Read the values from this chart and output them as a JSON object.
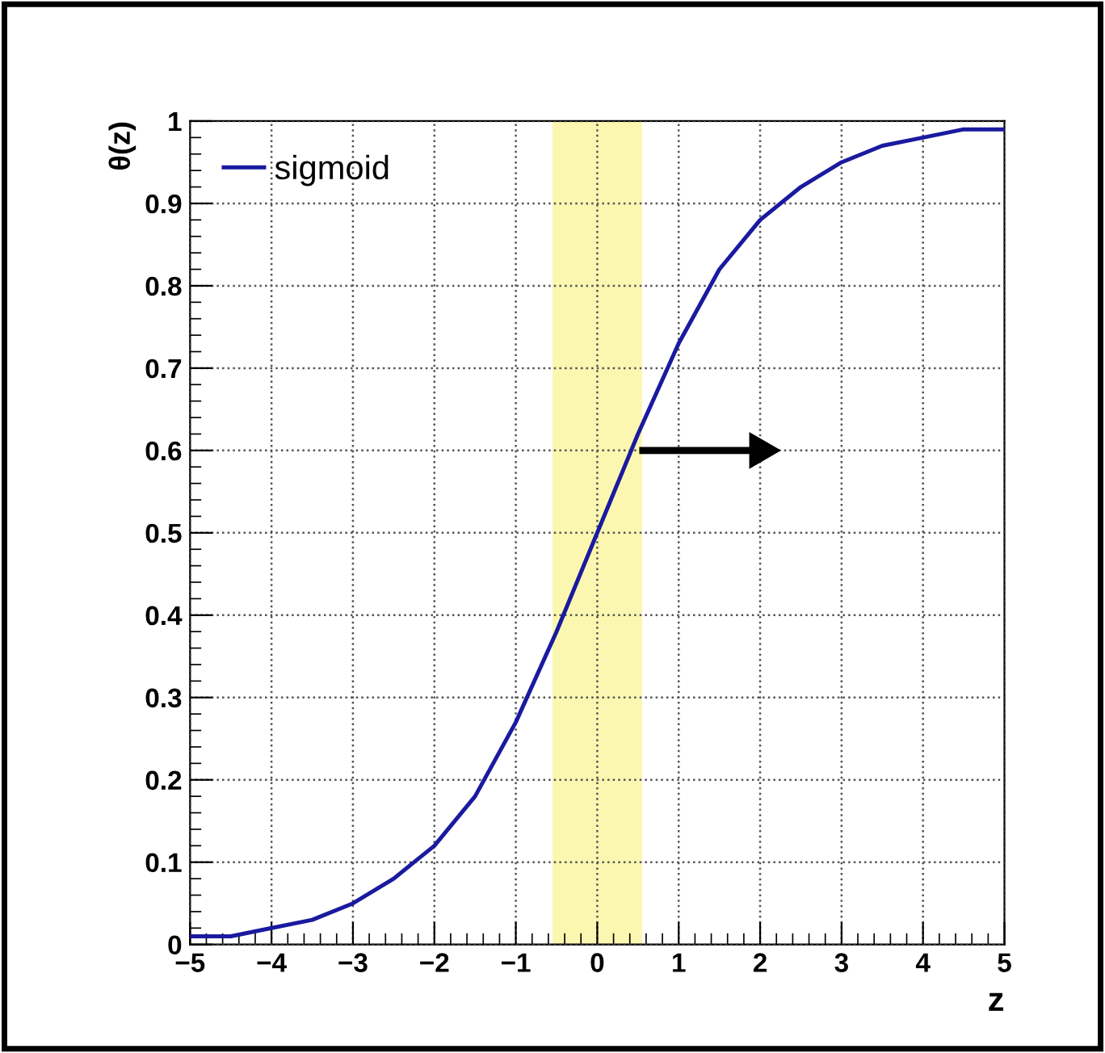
{
  "chart_data": {
    "type": "line",
    "xlabel": "z",
    "ylabel": "θ(z)",
    "x": [
      -5,
      -4.5,
      -4,
      -3.5,
      -3,
      -2.5,
      -2,
      -1.5,
      -1,
      -0.5,
      0,
      0.5,
      1,
      1.5,
      2,
      2.5,
      3,
      3.5,
      4,
      4.5,
      5
    ],
    "series": [
      {
        "name": "sigmoid",
        "color": "#1a1aa0",
        "values": [
          0.01,
          0.01,
          0.02,
          0.03,
          0.05,
          0.08,
          0.12,
          0.18,
          0.27,
          0.38,
          0.5,
          0.62,
          0.73,
          0.82,
          0.88,
          0.92,
          0.95,
          0.97,
          0.98,
          0.99,
          0.99
        ]
      }
    ],
    "xlim": [
      -5,
      5
    ],
    "xticks": [
      {
        "value": -5,
        "label": "−5"
      },
      {
        "value": -4,
        "label": "−4"
      },
      {
        "value": -3,
        "label": "−3"
      },
      {
        "value": -2,
        "label": "−2"
      },
      {
        "value": -1,
        "label": "−1"
      },
      0,
      1,
      2,
      3,
      4,
      5
    ],
    "ylim": [
      0,
      1
    ],
    "yticks": [
      0,
      0.1,
      0.2,
      0.3,
      0.4,
      0.5,
      0.6,
      0.7,
      0.8,
      0.9,
      1
    ],
    "bands": [
      {
        "axis": "x",
        "from": -0.55,
        "to": 0.55,
        "color": "#fbf7b0"
      }
    ],
    "grid": true,
    "legend": "top left",
    "marker": "none",
    "line_style": "solid"
  }
}
